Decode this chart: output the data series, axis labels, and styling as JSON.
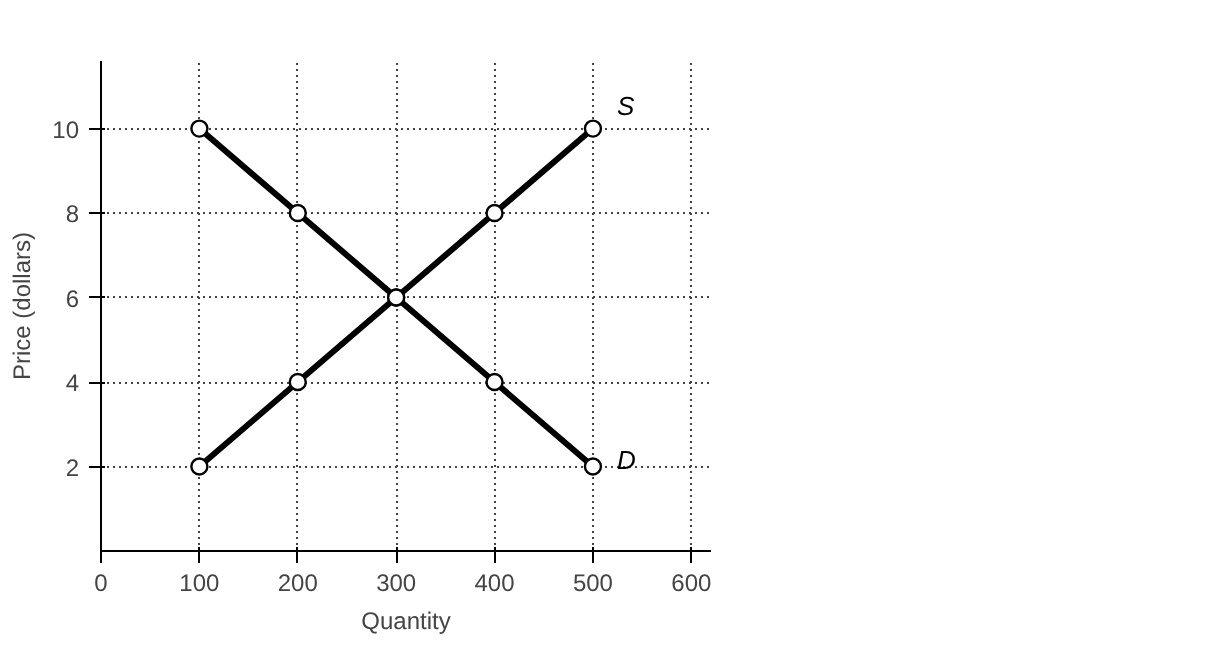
{
  "chart_data": {
    "type": "line",
    "xlabel": "Quantity",
    "ylabel": "Price (dollars)",
    "x": [
      100,
      200,
      300,
      400,
      500
    ],
    "series": [
      {
        "name": "S",
        "color": "#000000",
        "values": [
          2,
          4,
          6,
          8,
          10
        ]
      },
      {
        "name": "D",
        "color": "#000000",
        "values": [
          10,
          8,
          6,
          4,
          2
        ]
      }
    ],
    "xlim": [
      0,
      620
    ],
    "ylim": [
      0,
      11.6
    ],
    "xticks": [
      0,
      100,
      200,
      300,
      400,
      500,
      600
    ],
    "yticks": [
      2,
      4,
      6,
      8,
      10
    ],
    "grid": true,
    "marker": "circle",
    "line_style": "solid",
    "legend": false
  }
}
